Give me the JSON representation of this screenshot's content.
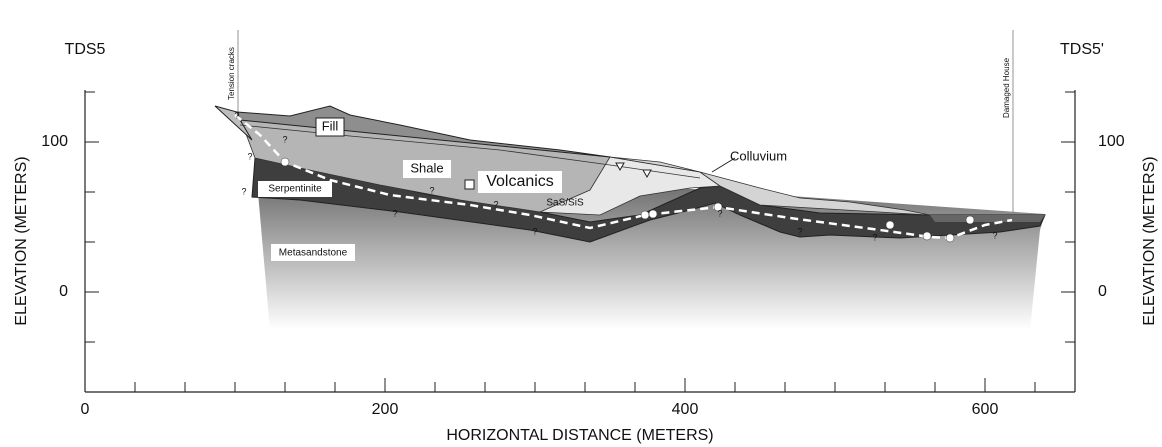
{
  "section": {
    "left_label": "TDS5",
    "right_label": "TDS5'"
  },
  "annotations": {
    "tension": "Tension cracks",
    "house": "Damaged House"
  },
  "units": {
    "fill": "Fill",
    "shale": "Shale",
    "volcanics": "Volcanics",
    "sas": "SaS/SiS",
    "colluvium": "Colluvium",
    "serpentinite": "Serpentinite",
    "metasandstone": "Metasandstone"
  },
  "question_marks": [
    "?",
    "?",
    "?",
    "?",
    "?",
    "?",
    "?",
    "?",
    "?",
    "?",
    "?",
    "?"
  ],
  "axes": {
    "x_title": "HORIZONTAL DISTANCE (METERS)",
    "y_title": "ELEVATION (METERS)",
    "x_ticks": [
      0,
      200,
      400,
      600
    ],
    "y_ticks": [
      100,
      0
    ]
  }
}
